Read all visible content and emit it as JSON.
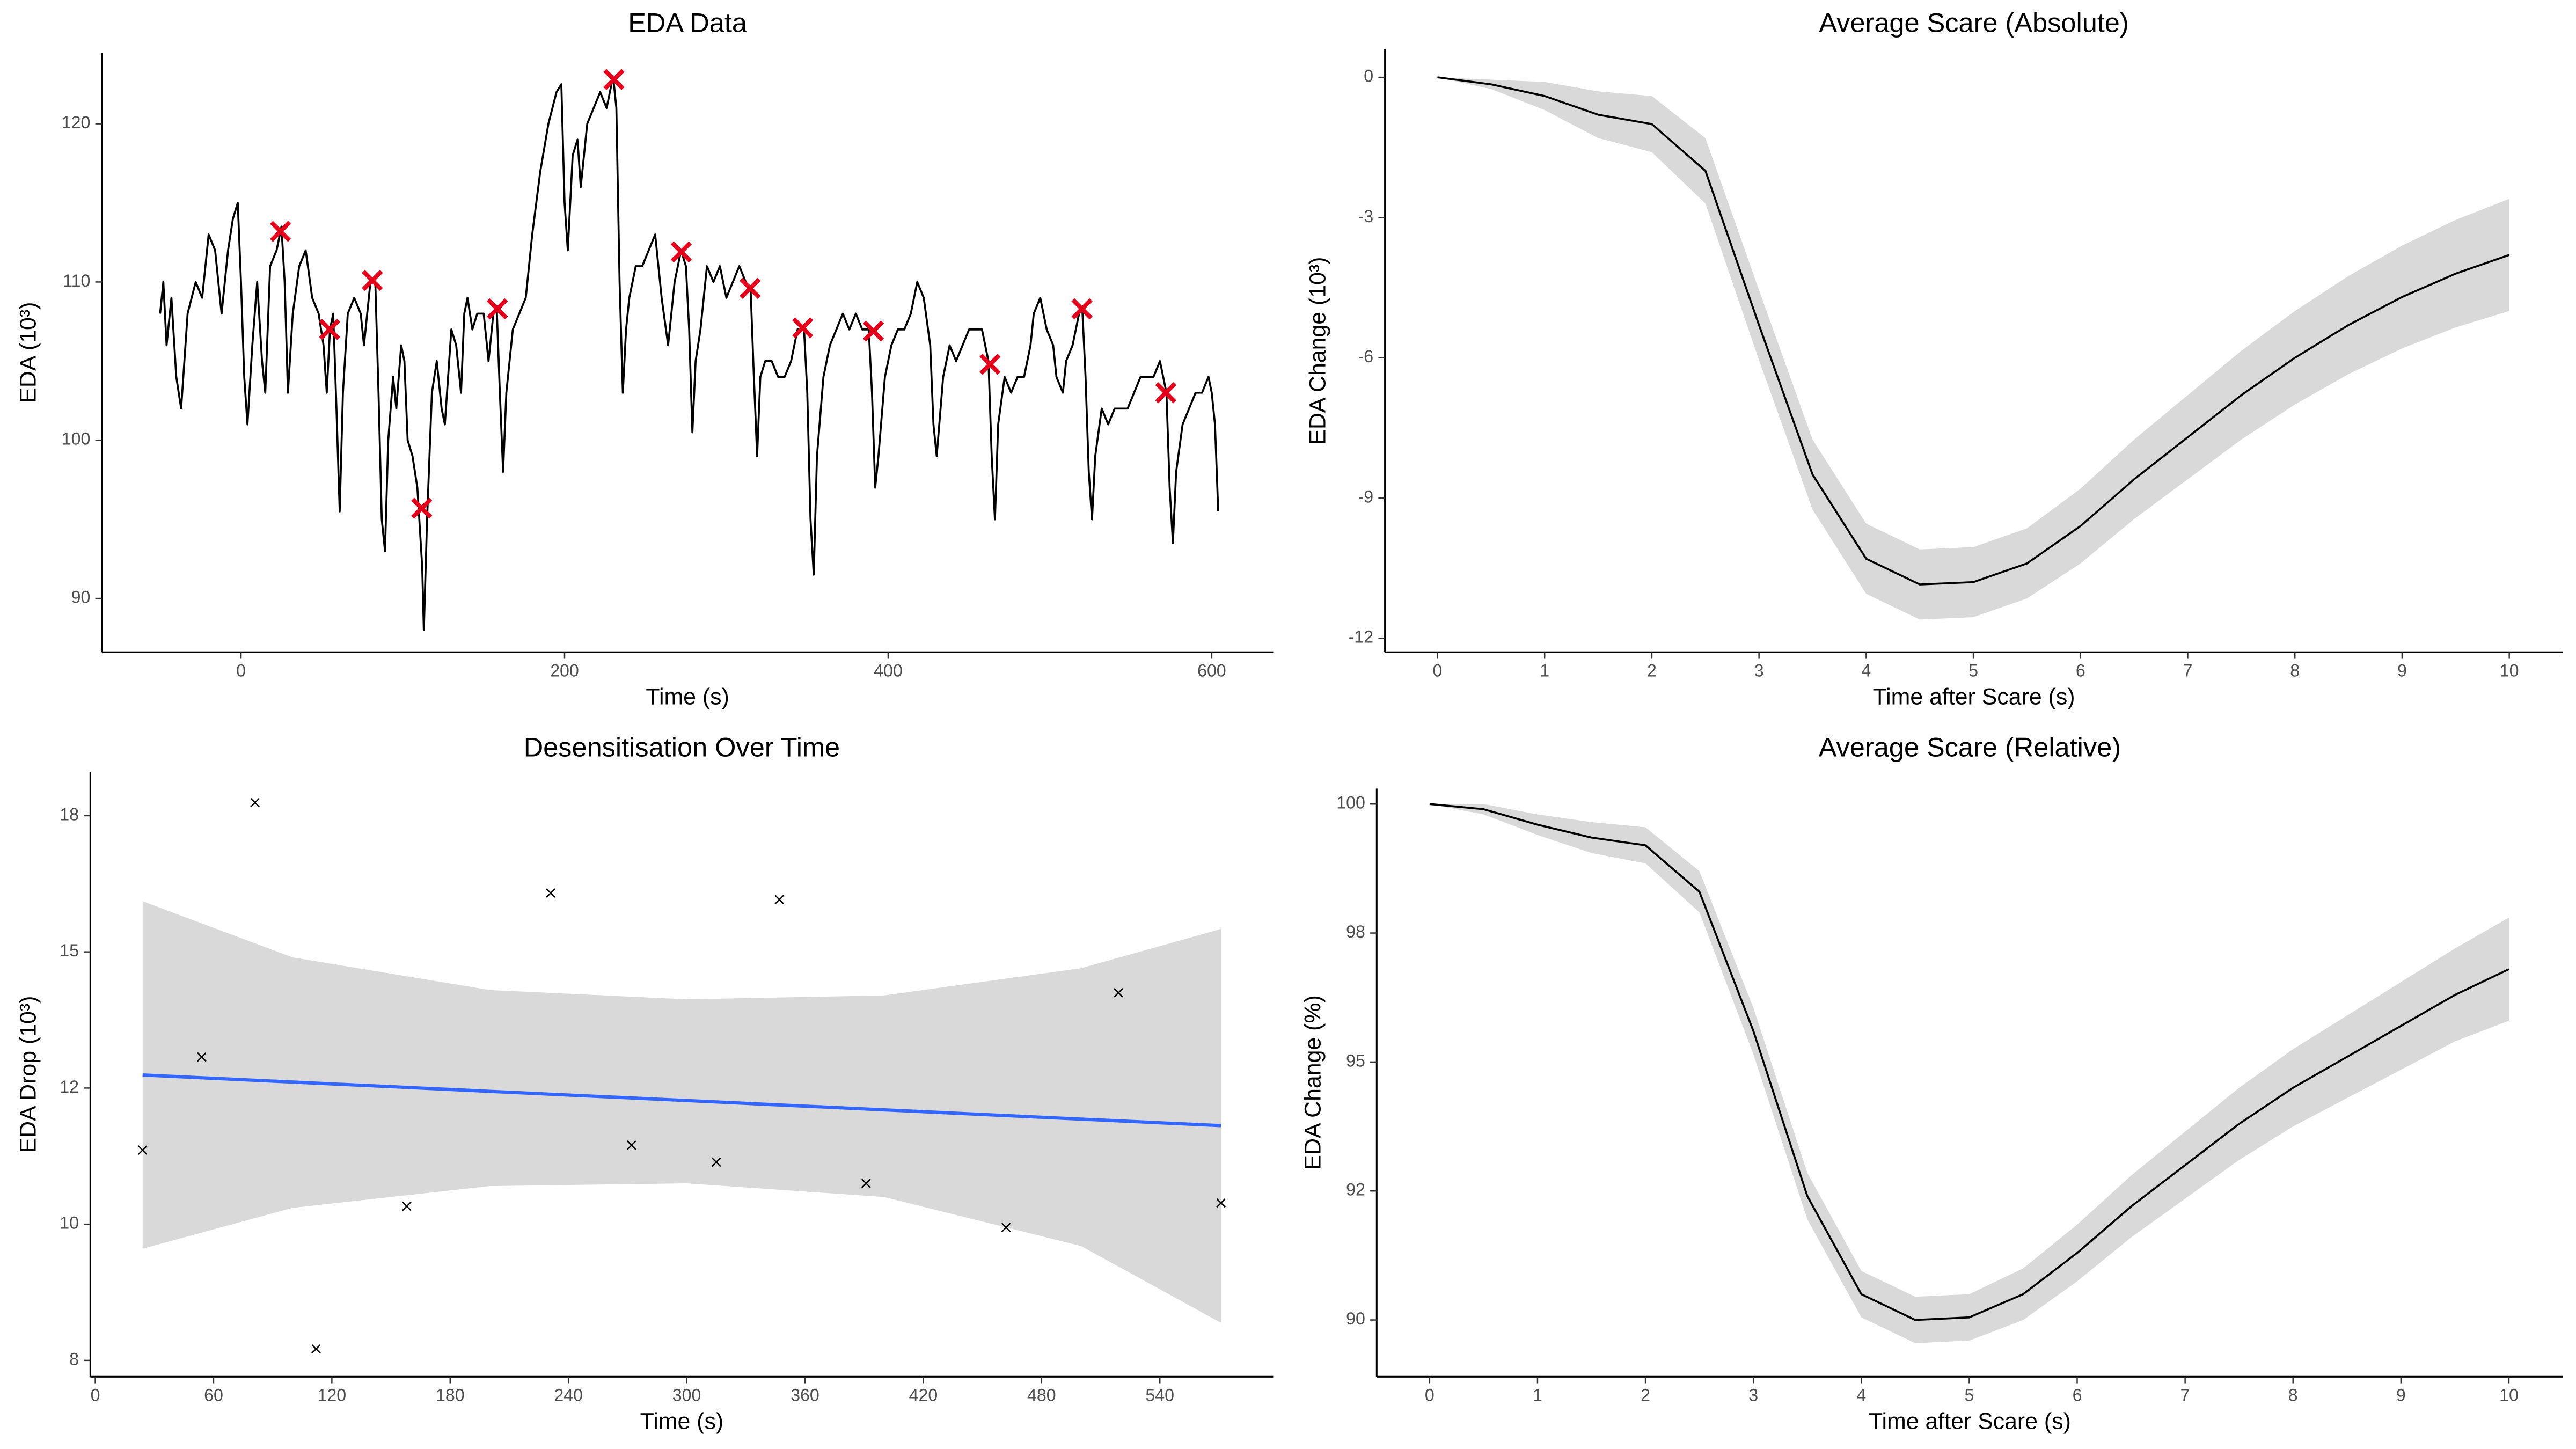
{
  "chart_data": [
    {
      "type": "line",
      "title": "EDA Data",
      "x_label": "Time (s)",
      "y_label": "EDA  (10³)",
      "xlim": [
        -86,
        638
      ],
      "ylim": [
        86.6,
        124.5
      ],
      "xticks": [
        0,
        200,
        400,
        600
      ],
      "yticks": [
        90,
        100,
        110,
        120
      ],
      "color": "#000000",
      "x": [
        -50,
        -48,
        -46,
        -43,
        -40,
        -37,
        -33,
        -28,
        -24,
        -20,
        -16,
        -12,
        -8,
        -5,
        -2,
        0,
        2,
        4,
        7,
        10,
        13,
        15,
        18,
        22,
        25,
        27,
        29,
        32,
        36,
        40,
        44,
        48,
        51,
        53,
        55,
        57,
        59,
        61,
        63,
        66,
        70,
        74,
        76,
        80,
        83,
        85,
        87,
        89,
        91,
        94,
        96,
        99,
        101,
        103,
        106,
        109,
        112,
        113,
        115,
        118,
        121,
        124,
        126,
        130,
        133,
        136,
        138,
        140,
        143,
        146,
        150,
        153,
        156,
        158,
        160,
        162,
        164,
        168,
        172,
        176,
        180,
        185,
        190,
        195,
        198,
        200,
        202,
        205,
        208,
        210,
        214,
        218,
        222,
        226,
        230,
        232,
        234,
        236,
        238,
        240,
        244,
        248,
        252,
        256,
        260,
        264,
        268,
        272,
        275,
        277,
        279,
        281,
        284,
        288,
        292,
        296,
        300,
        304,
        308,
        312,
        315,
        317,
        319,
        321,
        324,
        328,
        332,
        336,
        340,
        344,
        348,
        350,
        352,
        354,
        356,
        360,
        364,
        368,
        372,
        376,
        380,
        384,
        388,
        390,
        392,
        394,
        398,
        402,
        406,
        410,
        414,
        418,
        422,
        426,
        428,
        430,
        434,
        438,
        442,
        446,
        450,
        454,
        458,
        462,
        464,
        466,
        468,
        472,
        476,
        480,
        484,
        488,
        490,
        494,
        498,
        502,
        504,
        508,
        510,
        514,
        518,
        520,
        522,
        524,
        526,
        528,
        532,
        536,
        540,
        544,
        548,
        552,
        556,
        560,
        564,
        568,
        570,
        572,
        574,
        576,
        578,
        582,
        586,
        590,
        594,
        598,
        600,
        602,
        604
      ],
      "values": [
        108,
        110,
        106,
        109,
        104,
        102,
        108,
        110,
        109,
        113,
        112,
        108,
        112,
        114,
        115,
        110,
        104,
        101,
        106,
        110,
        105,
        103,
        111,
        112,
        113.5,
        110,
        103,
        108,
        111,
        112,
        109,
        108,
        106,
        103,
        107,
        108,
        102,
        95.5,
        103,
        108,
        109,
        108,
        106,
        110,
        110,
        103,
        95,
        93,
        100,
        104,
        102,
        106,
        105,
        100,
        99,
        97,
        92,
        88,
        95,
        103,
        105,
        102,
        101,
        107,
        106,
        103,
        108,
        109,
        107,
        108,
        108,
        105,
        108,
        108.5,
        103,
        98,
        103,
        107,
        108,
        109,
        113,
        117,
        120,
        122,
        122.5,
        115,
        112,
        118,
        119,
        116,
        120,
        121,
        122,
        121,
        123,
        121,
        110,
        103,
        107,
        109,
        111,
        111,
        112,
        113,
        109,
        106,
        110,
        112,
        111,
        107,
        100.5,
        105,
        107,
        111,
        110,
        111,
        109,
        110,
        111,
        110,
        109.5,
        104,
        99,
        104,
        105,
        105,
        104,
        104,
        105,
        107,
        107,
        103,
        95,
        91.5,
        99,
        104,
        106,
        107,
        108,
        107,
        108,
        107,
        107,
        103,
        97,
        99,
        104,
        106,
        107,
        107,
        108,
        110,
        109,
        106,
        101,
        99,
        104,
        106,
        105,
        106,
        107,
        107,
        107,
        105,
        99,
        95,
        101,
        104,
        103,
        104,
        104,
        106,
        108,
        109,
        107,
        106,
        104,
        103,
        105,
        106,
        108,
        108.3,
        104,
        98,
        95,
        99,
        102,
        101,
        102,
        102,
        102,
        103,
        104,
        104,
        104,
        105,
        104,
        103,
        97,
        93.5,
        98,
        101,
        102,
        103,
        103,
        104,
        103,
        101,
        95.5
      ],
      "markers": {
        "marker": "x",
        "color": "#e3001b",
        "x": [
          24.4,
          54.8,
          81.2,
          111.7,
          158.4,
          230.5,
          272.1,
          314.7,
          347.2,
          390.9,
          463,
          519.8,
          571.6
        ],
        "values": [
          113.2,
          107.0,
          110.1,
          95.7,
          108.3,
          122.8,
          111.9,
          109.6,
          107.1,
          106.9,
          104.8,
          108.3,
          103.0
        ]
      }
    },
    {
      "type": "line",
      "title": "Average Scare (Absolute)",
      "x_label": "Time after Scare (s)",
      "y_label": "EDA Change  (10³)",
      "xlim": [
        -0.49,
        10.5
      ],
      "ylim": [
        -12.3,
        0.6
      ],
      "xticks": [
        0,
        1,
        2,
        3,
        4,
        5,
        6,
        7,
        8,
        9,
        10
      ],
      "yticks": [
        0,
        -3,
        -6,
        -9,
        -12
      ],
      "color": "#000000",
      "band_color": "#d9d9d9",
      "x": [
        0,
        0.5,
        1,
        1.5,
        2,
        2.5,
        3,
        3.5,
        4,
        4.5,
        5,
        5.5,
        6,
        6.5,
        7,
        7.5,
        8,
        8.5,
        9,
        9.5,
        10
      ],
      "values": [
        0,
        -0.15,
        -0.4,
        -0.8,
        -1.0,
        -2.0,
        -5.3,
        -8.5,
        -10.3,
        -10.85,
        -10.8,
        -10.4,
        -9.6,
        -8.6,
        -7.7,
        -6.8,
        -6.0,
        -5.3,
        -4.7,
        -4.2,
        -3.8
      ],
      "upper": [
        0,
        -0.05,
        -0.1,
        -0.3,
        -0.4,
        -1.3,
        -4.55,
        -7.75,
        -9.55,
        -10.1,
        -10.05,
        -9.65,
        -8.8,
        -7.75,
        -6.8,
        -5.85,
        -5.0,
        -4.25,
        -3.6,
        -3.05,
        -2.6
      ],
      "lower": [
        0,
        -0.25,
        -0.7,
        -1.3,
        -1.6,
        -2.7,
        -6.05,
        -9.25,
        -11.05,
        -11.6,
        -11.55,
        -11.15,
        -10.4,
        -9.45,
        -8.6,
        -7.75,
        -7.0,
        -6.35,
        -5.8,
        -5.35,
        -5.0
      ]
    },
    {
      "type": "scatter",
      "title": "Desensitisation Over Time",
      "x_label": "Time (s)",
      "y_label": "EDA Drop  (10³)",
      "xlim": [
        -2.5,
        597.5
      ],
      "ylim": [
        7.2,
        18.3
      ],
      "xticks": [
        0,
        60,
        120,
        180,
        240,
        300,
        360,
        420,
        480,
        540
      ],
      "yticks": [
        {
          "value": 7.5,
          "label": "8"
        },
        10,
        {
          "value": 12.5,
          "label": "12"
        },
        15,
        {
          "value": 17.5,
          "label": "18"
        }
      ],
      "color": "#000000",
      "marker": "x",
      "x": [
        24,
        54,
        81,
        112,
        158,
        231,
        272,
        315,
        347,
        391,
        462,
        519,
        571
      ],
      "values": [
        11.36,
        13.07,
        17.74,
        7.71,
        10.33,
        16.08,
        11.45,
        11.14,
        15.96,
        10.75,
        9.94,
        14.25,
        10.39
      ],
      "fit": {
        "color": "#3366ff",
        "band_color": "#d9d9d9",
        "x": [
          24,
          100,
          200,
          300,
          400,
          500,
          571
        ],
        "values": [
          12.74,
          12.61,
          12.44,
          12.27,
          12.1,
          11.93,
          11.81
        ],
        "upper": [
          15.93,
          14.9,
          14.3,
          14.13,
          14.2,
          14.7,
          15.42
        ],
        "lower": [
          9.55,
          10.3,
          10.7,
          10.75,
          10.5,
          9.6,
          8.19
        ]
      }
    },
    {
      "type": "line",
      "title": "Average Scare (Relative)",
      "x_label": "Time after Scare (s)",
      "y_label": "EDA Change (%)",
      "xlim": [
        -0.49,
        10.5
      ],
      "ylim": [
        88.9,
        100.3
      ],
      "xticks": [
        0,
        1,
        2,
        3,
        4,
        5,
        6,
        7,
        8,
        9,
        10
      ],
      "yticks": [
        {
          "value": 90,
          "label": "90"
        },
        {
          "value": 92.5,
          "label": "92"
        },
        95,
        {
          "value": 97.5,
          "label": "98"
        },
        100
      ],
      "color": "#000000",
      "band_color": "#d9d9d9",
      "x": [
        0,
        0.5,
        1,
        1.5,
        2,
        2.5,
        3,
        3.5,
        4,
        4.5,
        5,
        5.5,
        6,
        6.5,
        7,
        7.5,
        8,
        8.5,
        9,
        9.5,
        10
      ],
      "values": [
        100,
        99.9,
        99.6,
        99.35,
        99.2,
        98.3,
        95.6,
        92.4,
        90.5,
        90.0,
        90.05,
        90.5,
        91.3,
        92.2,
        93.0,
        93.8,
        94.5,
        95.1,
        95.7,
        96.3,
        96.8
      ],
      "upper": [
        100,
        100.0,
        99.8,
        99.65,
        99.55,
        98.7,
        96.05,
        92.85,
        90.95,
        90.45,
        90.5,
        91.0,
        91.85,
        92.8,
        93.65,
        94.5,
        95.25,
        95.9,
        96.55,
        97.2,
        97.8
      ],
      "lower": [
        100,
        99.8,
        99.4,
        99.05,
        98.85,
        97.9,
        95.15,
        91.95,
        90.05,
        89.55,
        89.6,
        90.0,
        90.75,
        91.6,
        92.35,
        93.1,
        93.75,
        94.3,
        94.85,
        95.4,
        95.8
      ]
    }
  ]
}
